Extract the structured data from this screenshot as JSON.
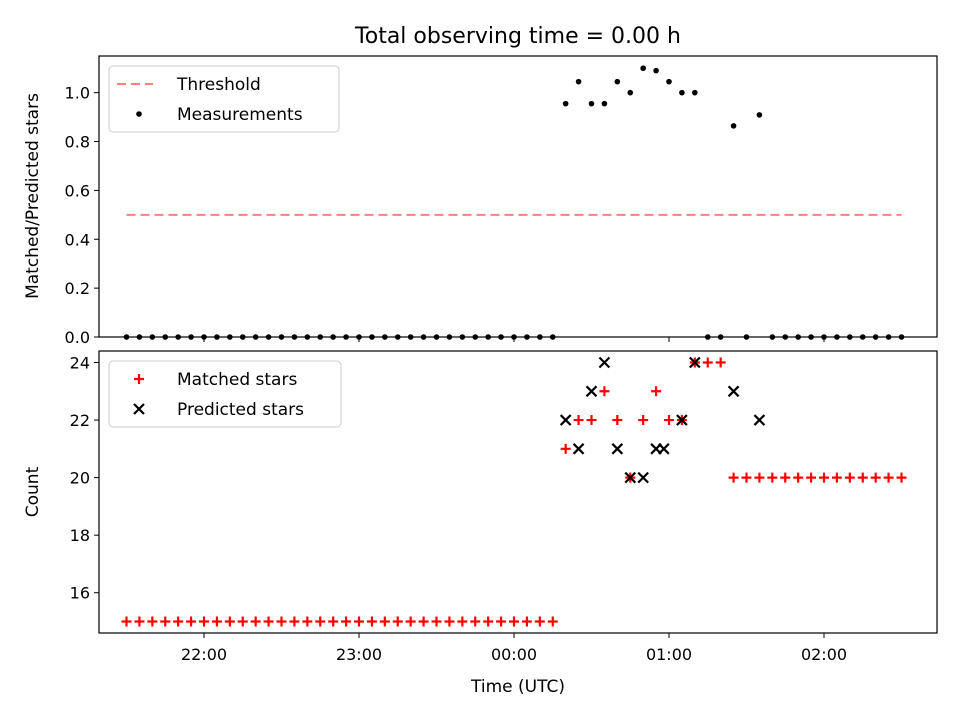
{
  "chart_data": [
    {
      "type": "scatter",
      "title": "Total observing time = 0.00 h",
      "ylabel": "Matched/Predicted stars",
      "ylim": [
        0,
        1.15
      ],
      "yticks": [
        "0.0",
        "0.2",
        "0.4",
        "0.6",
        "0.8",
        "1.0"
      ],
      "legend_position": "top-left",
      "threshold": {
        "name": "Threshold",
        "value": 0.5,
        "x_start": "21:30",
        "x_end": "02:30",
        "color": "#ff7f7f"
      },
      "series": [
        {
          "name": "Measurements",
          "color": "#000000",
          "x": [
            "21:30",
            "21:35",
            "21:40",
            "21:45",
            "21:50",
            "21:55",
            "22:00",
            "22:05",
            "22:10",
            "22:15",
            "22:20",
            "22:25",
            "22:30",
            "22:35",
            "22:40",
            "22:45",
            "22:50",
            "22:55",
            "23:00",
            "23:05",
            "23:10",
            "23:15",
            "23:20",
            "23:25",
            "23:30",
            "23:35",
            "23:40",
            "23:45",
            "23:50",
            "23:55",
            "00:00",
            "00:05",
            "00:10",
            "00:15",
            "00:20",
            "00:25",
            "00:30",
            "00:35",
            "00:40",
            "00:45",
            "00:50",
            "00:55",
            "01:00",
            "01:05",
            "01:10",
            "01:15",
            "01:20",
            "01:25",
            "01:30",
            "01:35",
            "01:40",
            "01:45",
            "01:50",
            "01:55",
            "02:00",
            "02:05",
            "02:10",
            "02:15",
            "02:20",
            "02:25",
            "02:30"
          ],
          "y": [
            0,
            0,
            0,
            0,
            0,
            0,
            0,
            0,
            0,
            0,
            0,
            0,
            0,
            0,
            0,
            0,
            0,
            0,
            0,
            0,
            0,
            0,
            0,
            0,
            0,
            0,
            0,
            0,
            0,
            0,
            0,
            0,
            0,
            0,
            0.955,
            1.045,
            0.955,
            0.955,
            1.045,
            1.0,
            1.1,
            1.09,
            1.045,
            1.0,
            1.0,
            0,
            0,
            0.864,
            0,
            0.909,
            0,
            0,
            0,
            0,
            0,
            0,
            0,
            0,
            0,
            0,
            0
          ]
        }
      ]
    },
    {
      "type": "scatter",
      "xlabel": "Time (UTC)",
      "ylabel": "Count",
      "ylim": [
        14.6,
        24.4
      ],
      "yticks": [
        "16",
        "18",
        "20",
        "22",
        "24"
      ],
      "xticks": [
        "22:00",
        "23:00",
        "00:00",
        "01:00",
        "02:00"
      ],
      "legend_position": "top-left",
      "series": [
        {
          "name": "Matched stars",
          "color": "#ff0000",
          "x": [
            "21:30",
            "21:35",
            "21:40",
            "21:45",
            "21:50",
            "21:55",
            "22:00",
            "22:05",
            "22:10",
            "22:15",
            "22:20",
            "22:25",
            "22:30",
            "22:35",
            "22:40",
            "22:45",
            "22:50",
            "22:55",
            "23:00",
            "23:05",
            "23:10",
            "23:15",
            "23:20",
            "23:25",
            "23:30",
            "23:35",
            "23:40",
            "23:45",
            "23:50",
            "23:55",
            "00:00",
            "00:05",
            "00:10",
            "00:15",
            "00:20",
            "00:25",
            "00:30",
            "00:35",
            "00:40",
            "00:45",
            "00:50",
            "00:55",
            "01:00",
            "01:05",
            "01:10",
            "01:15",
            "01:20",
            "01:25",
            "01:30",
            "01:35",
            "01:40",
            "01:45",
            "01:50",
            "01:55",
            "02:00",
            "02:05",
            "02:10",
            "02:15",
            "02:20",
            "02:25",
            "02:30"
          ],
          "y": [
            15,
            15,
            15,
            15,
            15,
            15,
            15,
            15,
            15,
            15,
            15,
            15,
            15,
            15,
            15,
            15,
            15,
            15,
            15,
            15,
            15,
            15,
            15,
            15,
            15,
            15,
            15,
            15,
            15,
            15,
            15,
            15,
            15,
            15,
            21,
            22,
            22,
            23,
            22,
            20,
            22,
            23,
            22,
            22,
            24,
            24,
            24,
            20,
            20,
            20,
            20,
            20,
            20,
            20,
            20,
            20,
            20,
            20,
            20,
            20,
            20
          ]
        },
        {
          "name": "Predicted stars",
          "color": "#000000",
          "x": [
            "00:20",
            "00:25",
            "00:30",
            "00:35",
            "00:40",
            "00:45",
            "00:50",
            "00:55",
            "00:58",
            "01:05",
            "01:10",
            "01:25",
            "01:35"
          ],
          "y": [
            22,
            21,
            23,
            24,
            21,
            20,
            20,
            21,
            21,
            22,
            24,
            23,
            22
          ]
        }
      ]
    }
  ]
}
